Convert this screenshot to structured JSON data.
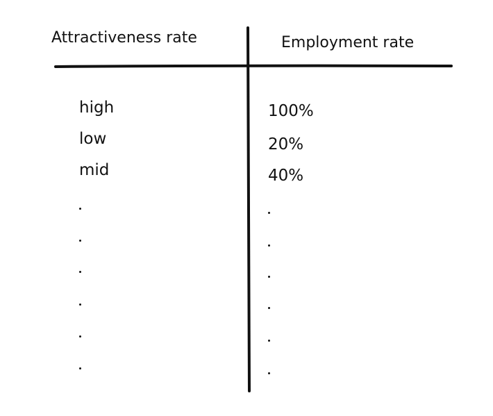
{
  "table": {
    "headers": {
      "left": "Attractiveness rate",
      "right": "Employment rate"
    },
    "rows": [
      {
        "attractiveness": "high",
        "employment": "100%"
      },
      {
        "attractiveness": "low",
        "employment": "20%"
      },
      {
        "attractiveness": "mid",
        "employment": "40%"
      }
    ],
    "continuation_marks": 6
  }
}
